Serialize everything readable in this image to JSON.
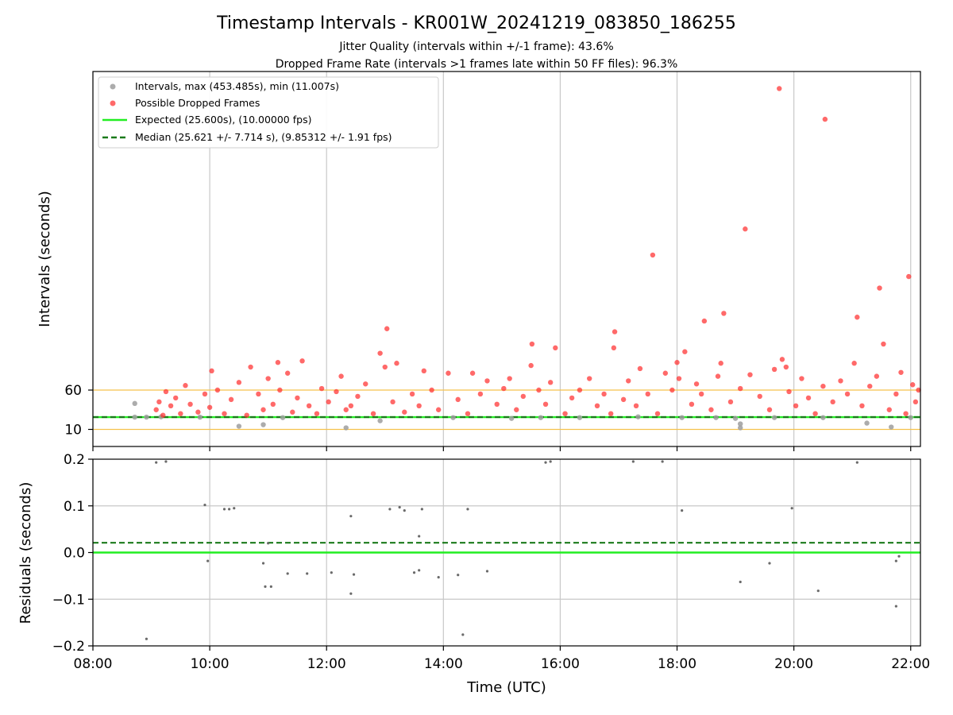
{
  "title": "Timestamp Intervals - KR001W_20241219_083850_186255",
  "subtitle_1": "Jitter Quality (intervals within +/-1 frame): 43.6%",
  "subtitle_2": "Dropped Frame Rate (intervals >1 frames late within 50 FF files): 96.3%",
  "colors": {
    "interval": "#9e9e9e",
    "dropped": "#ff2a2a",
    "expected": "#22ee22",
    "median": "#1a7a1a",
    "threshold": "#f5c24c",
    "residual": "#6a6a6a",
    "grid": "#c8c8c8"
  },
  "chart_data": [
    {
      "type": "scatter",
      "ylabel": "Intervals (seconds)",
      "xlim": [
        "08:00",
        "22:10"
      ],
      "y_ticks": [
        "10",
        "60"
      ],
      "grid": "vertical at x ticks",
      "reference_lines": [
        {
          "label": "Expected (25.600s), (10.00000 fps)",
          "y": 25.6,
          "style": "solid"
        },
        {
          "label": "Median (25.621 +/- 7.714 s), (9.85312 +/- 1.91 fps)",
          "y": 25.621,
          "style": "dashed"
        },
        {
          "y": 10,
          "style": "threshold"
        },
        {
          "y": 60,
          "style": "threshold"
        }
      ],
      "legend": {
        "placement": "top-left",
        "entries": [
          "Intervals, max (453.485s), min (11.007s)",
          "Possible Dropped Frames",
          "Expected (25.600s), (10.00000 fps)",
          "Median (25.621 +/- 7.714 s), (9.85312 +/- 1.91 fps)"
        ]
      },
      "series": [
        {
          "name": "Intervals, max (453.485s), min (11.007s)",
          "points": [
            [
              "08:43",
              25.6
            ],
            [
              "08:43",
              43
            ],
            [
              "08:55",
              25.6
            ],
            [
              "09:10",
              26
            ],
            [
              "09:50",
              25.6
            ],
            [
              "10:30",
              14
            ],
            [
              "10:55",
              16
            ],
            [
              "11:15",
              25
            ],
            [
              "12:20",
              12
            ],
            [
              "12:55",
              21
            ],
            [
              "14:10",
              25
            ],
            [
              "15:10",
              24
            ],
            [
              "15:40",
              25
            ],
            [
              "16:20",
              25
            ],
            [
              "17:20",
              26
            ],
            [
              "18:05",
              25
            ],
            [
              "18:40",
              25
            ],
            [
              "19:00",
              24
            ],
            [
              "19:05",
              12
            ],
            [
              "19:05",
              17
            ],
            [
              "19:40",
              25
            ],
            [
              "20:30",
              25
            ],
            [
              "21:15",
              18
            ],
            [
              "21:40",
              13
            ],
            [
              "22:00",
              25
            ]
          ]
        },
        {
          "name": "Possible Dropped Frames",
          "points": [
            [
              "09:05",
              35
            ],
            [
              "09:08",
              45
            ],
            [
              "09:12",
              28
            ],
            [
              "09:15",
              58
            ],
            [
              "09:20",
              40
            ],
            [
              "09:25",
              50
            ],
            [
              "09:30",
              30
            ],
            [
              "09:35",
              66
            ],
            [
              "09:40",
              42
            ],
            [
              "09:48",
              32
            ],
            [
              "09:55",
              55
            ],
            [
              "10:00",
              38
            ],
            [
              "10:02",
              85
            ],
            [
              "10:08",
              60
            ],
            [
              "10:15",
              30
            ],
            [
              "10:22",
              48
            ],
            [
              "10:30",
              70
            ],
            [
              "10:38",
              28
            ],
            [
              "10:42",
              90
            ],
            [
              "10:50",
              55
            ],
            [
              "10:55",
              35
            ],
            [
              "11:00",
              75
            ],
            [
              "11:05",
              42
            ],
            [
              "11:10",
              96
            ],
            [
              "11:12",
              60
            ],
            [
              "11:20",
              82
            ],
            [
              "11:25",
              32
            ],
            [
              "11:30",
              50
            ],
            [
              "11:35",
              98
            ],
            [
              "11:42",
              40
            ],
            [
              "11:50",
              30
            ],
            [
              "11:55",
              62
            ],
            [
              "12:02",
              45
            ],
            [
              "12:10",
              58
            ],
            [
              "12:15",
              78
            ],
            [
              "12:20",
              35
            ],
            [
              "12:25",
              40
            ],
            [
              "12:32",
              52
            ],
            [
              "12:40",
              68
            ],
            [
              "12:48",
              30
            ],
            [
              "12:55",
              108
            ],
            [
              "13:00",
              90
            ],
            [
              "13:02",
              140
            ],
            [
              "13:08",
              45
            ],
            [
              "13:12",
              95
            ],
            [
              "13:20",
              32
            ],
            [
              "13:28",
              55
            ],
            [
              "13:35",
              40
            ],
            [
              "13:40",
              85
            ],
            [
              "13:48",
              60
            ],
            [
              "13:55",
              35
            ],
            [
              "14:05",
              82
            ],
            [
              "14:15",
              48
            ],
            [
              "14:25",
              30
            ],
            [
              "14:30",
              82
            ],
            [
              "14:38",
              55
            ],
            [
              "14:45",
              72
            ],
            [
              "14:55",
              42
            ],
            [
              "15:02",
              62
            ],
            [
              "15:08",
              75
            ],
            [
              "15:15",
              35
            ],
            [
              "15:22",
              52
            ],
            [
              "15:30",
              92
            ],
            [
              "15:31",
              120
            ],
            [
              "15:38",
              60
            ],
            [
              "15:45",
              42
            ],
            [
              "15:50",
              70
            ],
            [
              "15:55",
              115
            ],
            [
              "16:05",
              30
            ],
            [
              "16:12",
              50
            ],
            [
              "16:20",
              60
            ],
            [
              "16:30",
              75
            ],
            [
              "16:38",
              40
            ],
            [
              "16:45",
              55
            ],
            [
              "16:52",
              30
            ],
            [
              "16:55",
              115
            ],
            [
              "16:56",
              136
            ],
            [
              "17:05",
              48
            ],
            [
              "17:10",
              72
            ],
            [
              "17:18",
              40
            ],
            [
              "17:22",
              88
            ],
            [
              "17:30",
              55
            ],
            [
              "17:35",
              236
            ],
            [
              "17:40",
              30
            ],
            [
              "17:48",
              82
            ],
            [
              "17:55",
              60
            ],
            [
              "18:00",
              96
            ],
            [
              "18:02",
              75
            ],
            [
              "18:08",
              110
            ],
            [
              "18:15",
              42
            ],
            [
              "18:20",
              68
            ],
            [
              "18:25",
              55
            ],
            [
              "18:28",
              150
            ],
            [
              "18:35",
              35
            ],
            [
              "18:42",
              78
            ],
            [
              "18:45",
              95
            ],
            [
              "18:48",
              160
            ],
            [
              "18:55",
              45
            ],
            [
              "19:05",
              62
            ],
            [
              "19:10",
              270
            ],
            [
              "19:15",
              80
            ],
            [
              "19:25",
              52
            ],
            [
              "19:35",
              35
            ],
            [
              "19:40",
              87
            ],
            [
              "19:45",
              453
            ],
            [
              "19:48",
              100
            ],
            [
              "19:52",
              90
            ],
            [
              "19:55",
              58
            ],
            [
              "20:02",
              40
            ],
            [
              "20:08",
              75
            ],
            [
              "20:15",
              50
            ],
            [
              "20:22",
              30
            ],
            [
              "20:30",
              65
            ],
            [
              "20:32",
              413
            ],
            [
              "20:40",
              45
            ],
            [
              "20:48",
              72
            ],
            [
              "20:55",
              55
            ],
            [
              "21:02",
              95
            ],
            [
              "21:05",
              155
            ],
            [
              "21:10",
              40
            ],
            [
              "21:18",
              65
            ],
            [
              "21:25",
              78
            ],
            [
              "21:28",
              193
            ],
            [
              "21:32",
              120
            ],
            [
              "21:38",
              35
            ],
            [
              "21:45",
              55
            ],
            [
              "21:50",
              83
            ],
            [
              "21:55",
              30
            ],
            [
              "21:58",
              208
            ],
            [
              "22:02",
              67
            ],
            [
              "22:05",
              45
            ],
            [
              "22:08",
              60
            ]
          ]
        }
      ]
    },
    {
      "type": "scatter",
      "xlabel": "Time (UTC)",
      "ylabel": "Residuals (seconds)",
      "x_ticks": [
        "08:00",
        "10:00",
        "12:00",
        "14:00",
        "16:00",
        "18:00",
        "20:00",
        "22:00"
      ],
      "y_ticks": [
        "−0.2",
        "−0.1",
        "0.0",
        "0.1",
        "0.2"
      ],
      "ylim": [
        -0.2,
        0.2
      ],
      "grid": "vertical and horizontal",
      "reference_lines": [
        {
          "y": 0.0,
          "style": "solid"
        },
        {
          "y": 0.021,
          "style": "dashed"
        }
      ],
      "series": [
        {
          "name": "Residuals",
          "points": [
            [
              "08:55",
              -0.185
            ],
            [
              "09:05",
              0.193
            ],
            [
              "09:15",
              0.195
            ],
            [
              "09:55",
              0.102
            ],
            [
              "09:58",
              -0.018
            ],
            [
              "10:15",
              0.093
            ],
            [
              "10:20",
              0.093
            ],
            [
              "10:25",
              0.095
            ],
            [
              "10:55",
              -0.023
            ],
            [
              "10:57",
              -0.073
            ],
            [
              "11:03",
              -0.073
            ],
            [
              "11:00",
              0.02
            ],
            [
              "11:20",
              -0.045
            ],
            [
              "11:40",
              -0.045
            ],
            [
              "12:05",
              -0.043
            ],
            [
              "12:25",
              0.078
            ],
            [
              "12:25",
              -0.088
            ],
            [
              "12:28",
              -0.047
            ],
            [
              "13:05",
              0.093
            ],
            [
              "13:15",
              0.097
            ],
            [
              "13:20",
              0.09
            ],
            [
              "13:38",
              0.093
            ],
            [
              "13:30",
              -0.043
            ],
            [
              "13:35",
              0.035
            ],
            [
              "13:35",
              -0.038
            ],
            [
              "13:55",
              -0.053
            ],
            [
              "14:20",
              -0.176
            ],
            [
              "14:15",
              -0.048
            ],
            [
              "14:25",
              0.093
            ],
            [
              "14:45",
              -0.04
            ],
            [
              "15:45",
              0.193
            ],
            [
              "15:50",
              0.195
            ],
            [
              "17:15",
              0.195
            ],
            [
              "17:45",
              0.195
            ],
            [
              "18:05",
              0.09
            ],
            [
              "19:05",
              -0.063
            ],
            [
              "19:35",
              -0.023
            ],
            [
              "19:58",
              0.095
            ],
            [
              "20:25",
              -0.082
            ],
            [
              "21:05",
              0.193
            ],
            [
              "21:45",
              -0.115
            ],
            [
              "21:45",
              -0.018
            ],
            [
              "21:48",
              -0.008
            ]
          ]
        }
      ]
    }
  ]
}
